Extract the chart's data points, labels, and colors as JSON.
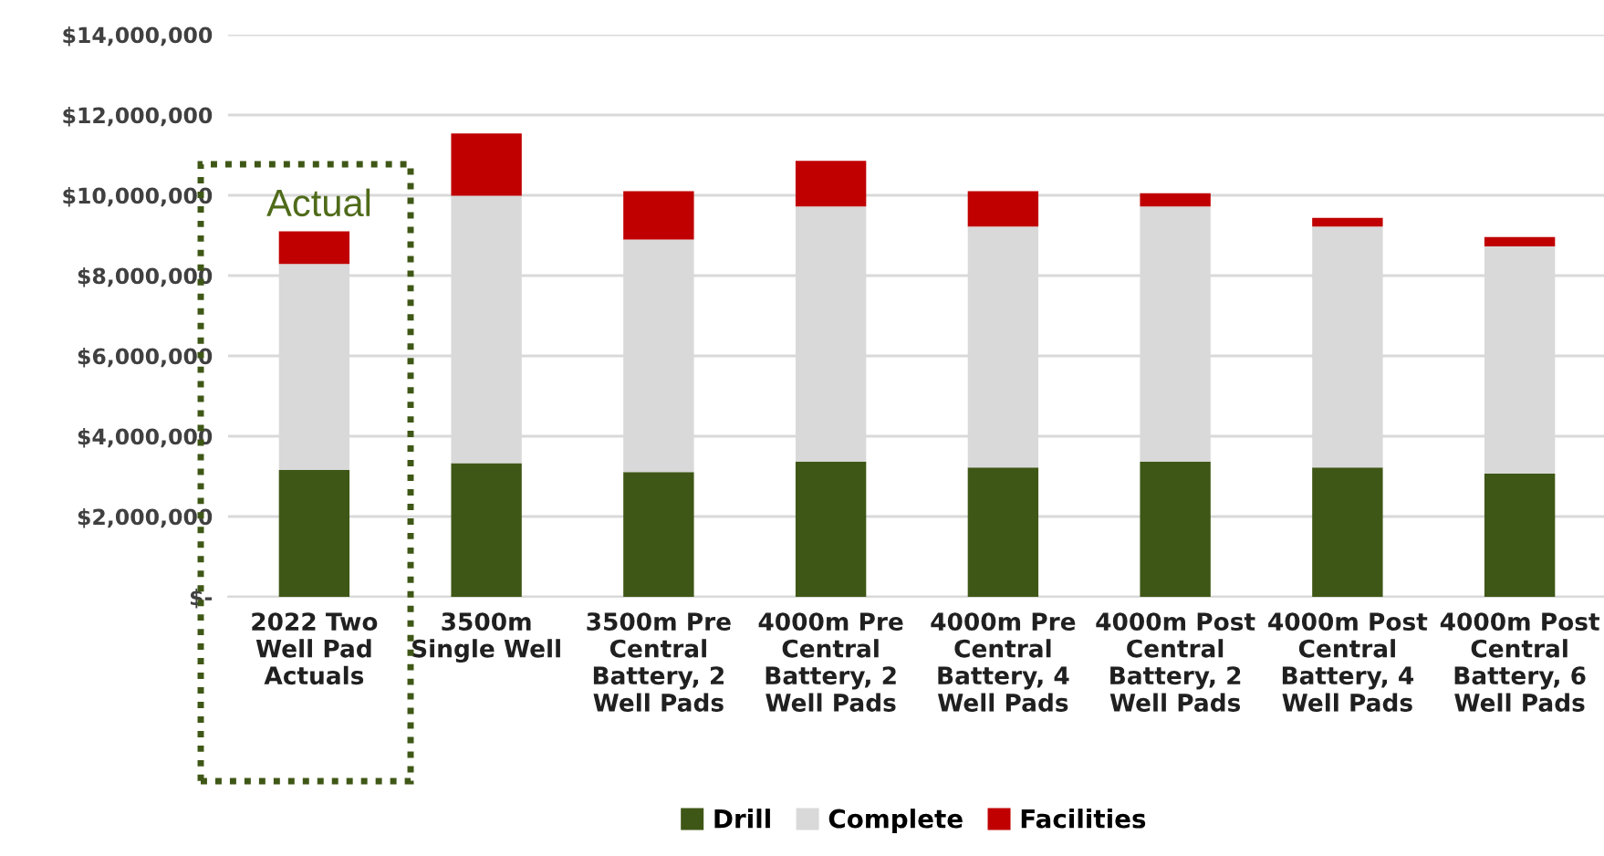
{
  "chart_data": {
    "type": "bar",
    "stacked": true,
    "categories": [
      "2022 Two\nWell Pad\nActuals",
      "3500m\nSingle Well",
      "3500m Pre\nCentral\nBattery, 2\nWell Pads",
      "4000m Pre\nCentral\nBattery, 2\nWell Pads",
      "4000m Pre\nCentral\nBattery, 4\nWell Pads",
      "4000m Post\nCentral\nBattery, 2\nWell Pads",
      "4000m Post\nCentral\nBattery, 4\nWell Pads",
      "4000m Post\nCentral\nBattery, 6\nWell Pads"
    ],
    "series": [
      {
        "name": "Drill",
        "color": "#3f5716",
        "values": [
          3160000,
          3330000,
          3110000,
          3370000,
          3220000,
          3370000,
          3220000,
          3070000
        ]
      },
      {
        "name": "Complete",
        "color": "#d9d9d9",
        "values": [
          5130000,
          6660000,
          5790000,
          6350000,
          6000000,
          6350000,
          6000000,
          5660000
        ]
      },
      {
        "name": "Facilities",
        "color": "#c00000",
        "values": [
          810000,
          1550000,
          1200000,
          1140000,
          880000,
          330000,
          220000,
          230000
        ]
      }
    ],
    "ylim": [
      0,
      14000000
    ],
    "yticks": [
      {
        "value": 0,
        "label": "$-"
      },
      {
        "value": 2000000,
        "label": "$2,000,000"
      },
      {
        "value": 4000000,
        "label": "$4,000,000"
      },
      {
        "value": 6000000,
        "label": "$6,000,000"
      },
      {
        "value": 8000000,
        "label": "$8,000,000"
      },
      {
        "value": 10000000,
        "label": "$10,000,000"
      },
      {
        "value": 12000000,
        "label": "$12,000,000"
      },
      {
        "value": 14000000,
        "label": "$14,000,000"
      }
    ],
    "grid": "y",
    "legend": "bottom",
    "annotations": [
      "Actual"
    ]
  }
}
